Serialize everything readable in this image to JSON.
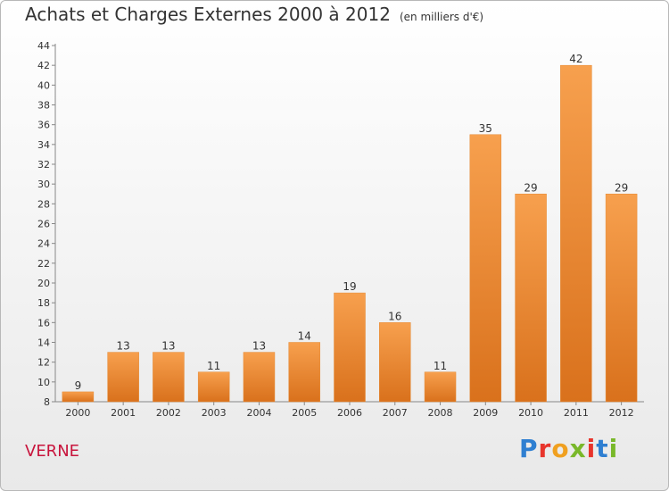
{
  "title": "Achats et Charges Externes 2000 à 2012",
  "unit": "(en milliers d'€)",
  "commune": "VERNE",
  "brand": "Proxiti",
  "colors": {
    "bar_top": "#f7a04e",
    "bar_bottom": "#d9711c",
    "commune_text": "#c8143c",
    "brand_letters": [
      "#2f7fd1",
      "#e8352c",
      "#f0a020",
      "#79b82a",
      "#e8352c",
      "#2f7fd1",
      "#79b82a"
    ]
  },
  "chart_data": {
    "type": "bar",
    "categories": [
      "2000",
      "2001",
      "2002",
      "2003",
      "2004",
      "2005",
      "2006",
      "2007",
      "2008",
      "2009",
      "2010",
      "2011",
      "2012"
    ],
    "values": [
      9,
      13,
      13,
      11,
      13,
      14,
      19,
      16,
      11,
      35,
      29,
      42,
      29
    ],
    "title": "Achats et Charges Externes 2000 à 2012",
    "ylim": [
      8,
      44
    ],
    "yticks": [
      8,
      10,
      12,
      14,
      16,
      18,
      20,
      22,
      24,
      26,
      28,
      30,
      32,
      34,
      36,
      38,
      40,
      42,
      44
    ],
    "grid": false,
    "data_labels": true
  }
}
